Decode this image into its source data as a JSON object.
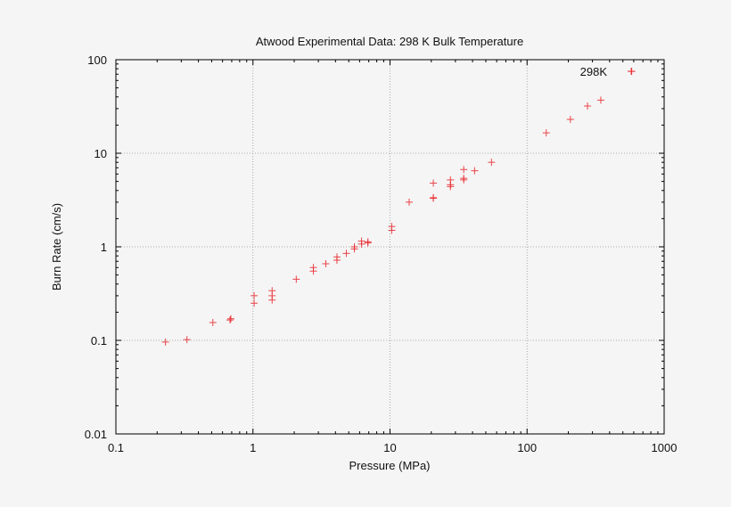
{
  "chart_data": {
    "type": "scatter",
    "title": "Atwood Experimental Data: 298 K Bulk Temperature",
    "xlabel": "Pressure (MPa)",
    "ylabel": "Burn Rate (cm/s)",
    "xscale": "log",
    "yscale": "log",
    "xlim": [
      0.1,
      1000
    ],
    "ylim": [
      0.01,
      100
    ],
    "xticks": [
      "0.1",
      "1",
      "10",
      "100",
      "1000"
    ],
    "yticks": [
      "0.01",
      "0.1",
      "1",
      "10",
      "100"
    ],
    "grid": true,
    "legend_position": "top-right",
    "series": [
      {
        "name": "298K",
        "color": "#e8262a",
        "marker": "plus",
        "points": [
          [
            0.23,
            0.096
          ],
          [
            0.33,
            0.102
          ],
          [
            0.51,
            0.155
          ],
          [
            0.68,
            0.165
          ],
          [
            0.69,
            0.17
          ],
          [
            1.02,
            0.3
          ],
          [
            1.02,
            0.25
          ],
          [
            1.38,
            0.34
          ],
          [
            1.38,
            0.3
          ],
          [
            1.38,
            0.27
          ],
          [
            2.07,
            0.45
          ],
          [
            2.76,
            0.6
          ],
          [
            2.76,
            0.55
          ],
          [
            3.4,
            0.66
          ],
          [
            4.1,
            0.72
          ],
          [
            4.1,
            0.78
          ],
          [
            4.8,
            0.85
          ],
          [
            5.5,
            0.95
          ],
          [
            5.5,
            1.0
          ],
          [
            6.2,
            1.07
          ],
          [
            6.2,
            1.15
          ],
          [
            6.9,
            1.1
          ],
          [
            6.9,
            1.13
          ],
          [
            10.3,
            1.5
          ],
          [
            10.3,
            1.65
          ],
          [
            13.8,
            3.0
          ],
          [
            20.7,
            4.8
          ],
          [
            20.7,
            3.3
          ],
          [
            20.7,
            3.35
          ],
          [
            27.6,
            5.2
          ],
          [
            27.6,
            4.4
          ],
          [
            27.6,
            4.6
          ],
          [
            34.5,
            6.7
          ],
          [
            34.5,
            5.2
          ],
          [
            34.5,
            5.4
          ],
          [
            41.4,
            6.5
          ],
          [
            55,
            8.0
          ],
          [
            138,
            16.5
          ],
          [
            207,
            23
          ],
          [
            276,
            32
          ],
          [
            345,
            37
          ],
          [
            580,
            75
          ]
        ]
      }
    ]
  }
}
